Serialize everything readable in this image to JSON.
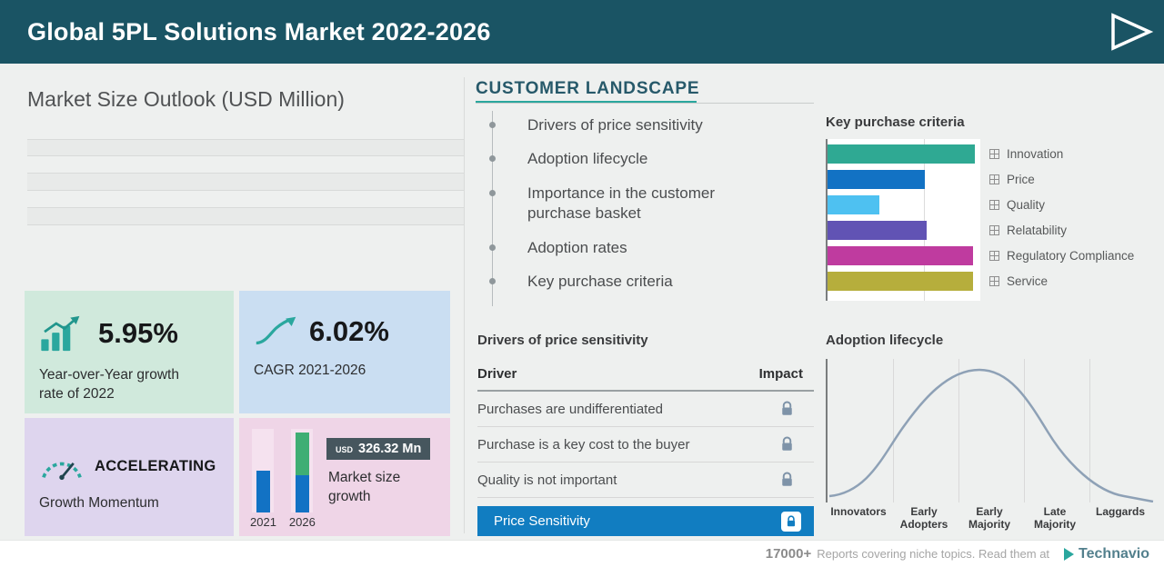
{
  "header": {
    "title": "Global 5PL Solutions Market 2022-2026"
  },
  "left_panel": {
    "market_size_title": "Market Size Outlook (USD Million)",
    "cards": {
      "yoy": {
        "value": "5.95%",
        "label": "Year-over-Year growth rate of 2022"
      },
      "cagr": {
        "value": "6.02%",
        "label": "CAGR 2021-2026"
      },
      "momentum": {
        "value": "ACCELERATING",
        "label": "Growth Momentum"
      },
      "market_growth": {
        "currency": "USD",
        "amount": "326.32 Mn",
        "label": "Market size growth"
      }
    }
  },
  "customer_landscape": {
    "title": "CUSTOMER LANDSCAPE",
    "items": [
      "Drivers of price sensitivity",
      "Adoption lifecycle",
      "Importance in the customer purchase basket",
      "Adoption rates",
      "Key purchase criteria"
    ]
  },
  "price_sensitivity_table": {
    "title": "Drivers of price sensitivity",
    "columns": [
      "Driver",
      "Impact"
    ],
    "rows": [
      "Purchases are undifferentiated",
      "Purchase is a key cost to the buyer",
      "Quality is not important"
    ],
    "highlighted_row": "Price Sensitivity",
    "impact_icon": "lock-icon"
  },
  "footer": {
    "reports_count": "17000+",
    "text": "Reports covering niche topics. Read them at",
    "brand": "Technavio"
  },
  "colors": {
    "header_bg": "#1a5464",
    "accent_teal": "#2aa79e",
    "highlight_blue": "#117dc1",
    "card_green": "#d0e9dc",
    "card_blue": "#cadef2",
    "card_purple": "#ded5ee",
    "card_pink": "#efd5e7"
  },
  "chart_data": [
    {
      "type": "bar",
      "title": "Key purchase criteria",
      "orientation": "horizontal",
      "categories": [
        "Innovation",
        "Price",
        "Quality",
        "Relatability",
        "Regulatory Compliance",
        "Service"
      ],
      "values": [
        100,
        66,
        35,
        67,
        99,
        99
      ],
      "value_note": "relative bar lengths; axis has no numeric labels",
      "colors": [
        "#2fa993",
        "#1272c4",
        "#4ec1f1",
        "#6153b4",
        "#bf3b9f",
        "#b6ae3c"
      ],
      "legend_position": "right"
    },
    {
      "type": "line",
      "title": "Adoption lifecycle",
      "shape": "bell-curve",
      "categories": [
        "Innovators",
        "Early Adopters",
        "Early Majority",
        "Late Majority",
        "Laggards"
      ],
      "values": [
        8,
        45,
        100,
        45,
        8
      ],
      "grid": true,
      "legend_position": "none"
    },
    {
      "type": "bar",
      "title": "Market size growth",
      "categories": [
        "2021",
        "2026"
      ],
      "values": [
        46,
        88
      ],
      "annotation": "USD 326.32 Mn",
      "growth_segment_color": "#3fae74"
    }
  ]
}
